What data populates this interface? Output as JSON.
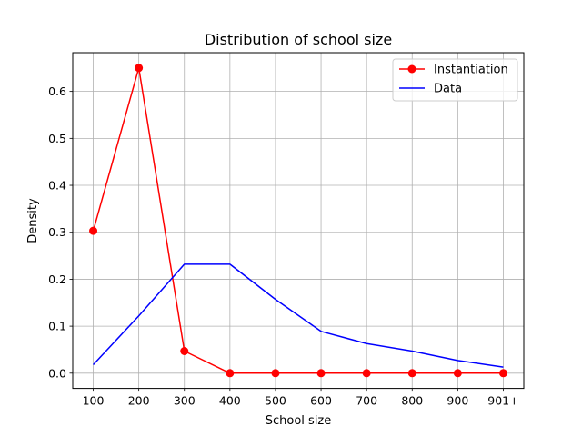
{
  "chart_data": {
    "type": "line",
    "title": "Distribution of school size",
    "xlabel": "School size",
    "ylabel": "Density",
    "categories": [
      "100",
      "200",
      "300",
      "400",
      "500",
      "600",
      "700",
      "800",
      "900",
      "901+"
    ],
    "ylim": [
      -0.0325,
      0.6825
    ],
    "yticks": [
      0.0,
      0.1,
      0.2,
      0.3,
      0.4,
      0.5,
      0.6
    ],
    "ytick_labels": [
      "0.0",
      "0.1",
      "0.2",
      "0.3",
      "0.4",
      "0.5",
      "0.6"
    ],
    "grid": true,
    "legend_position": "upper right",
    "series": [
      {
        "name": "Instantiation",
        "color": "#ff0000",
        "marker": "circle",
        "values": [
          0.303,
          0.65,
          0.047,
          0.0,
          0.0,
          0.0,
          0.0,
          0.0,
          0.0,
          0.0
        ]
      },
      {
        "name": "Data",
        "color": "#0000ff",
        "marker": "none",
        "values": [
          0.018,
          0.122,
          0.232,
          0.232,
          0.157,
          0.089,
          0.063,
          0.047,
          0.027,
          0.013
        ]
      }
    ]
  }
}
